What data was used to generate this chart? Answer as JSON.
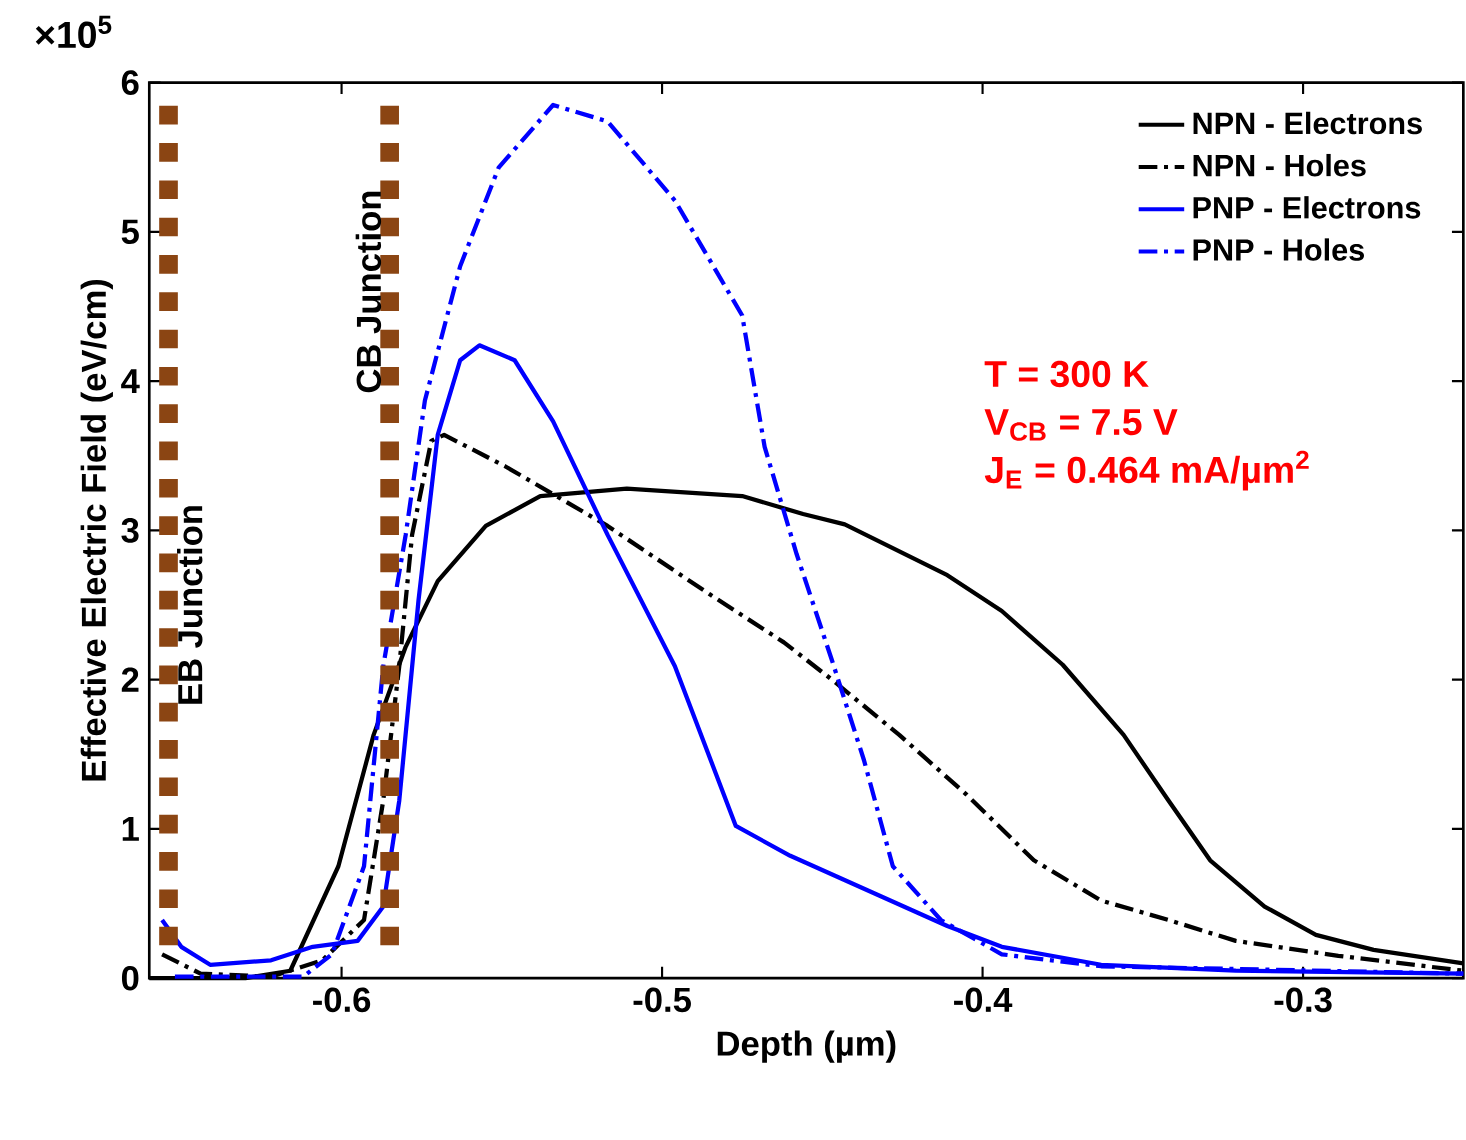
{
  "chart_data": {
    "type": "line",
    "xlabel": "Depth (µm)",
    "ylabel": "Effective Electric Field (eV/cm)",
    "xlim": [
      -0.66,
      -0.25
    ],
    "ylim": [
      0,
      6
    ],
    "xticks": [
      -0.6,
      -0.5,
      -0.4,
      -0.3
    ],
    "yticks": [
      0,
      1,
      2,
      3,
      4,
      5,
      6
    ],
    "legend": "top right",
    "grid": false,
    "annotations": [
      "×10$^{5}$",
      "T = 300 K",
      "V$_{CB}$ = 7.5 V",
      "J$_{E}$ = 0.464 mA/µm$^{2}$"
    ],
    "ref_lines": [
      {
        "axis": "x",
        "value": -0.654,
        "label": "EB Junction",
        "color": "#8b4513",
        "line_style": "dotted"
      },
      {
        "axis": "x",
        "value": -0.585,
        "label": "CB Junction",
        "color": "#8b4513",
        "line_style": "dotted"
      }
    ],
    "series": [
      {
        "name": "NPN - Electrons",
        "color": "#000000",
        "line_style": "solid",
        "x": [
          -0.66,
          -0.63,
          -0.616,
          -0.601,
          -0.59,
          -0.58,
          -0.57,
          -0.555,
          -0.538,
          -0.511,
          -0.475,
          -0.456,
          -0.443,
          -0.411,
          -0.394,
          -0.375,
          -0.356,
          -0.342,
          -0.329,
          -0.312,
          -0.296,
          -0.278,
          -0.25
        ],
        "values": [
          0.0,
          0.0,
          0.05,
          0.75,
          1.63,
          2.22,
          2.66,
          3.03,
          3.23,
          3.28,
          3.23,
          3.11,
          3.04,
          2.7,
          2.46,
          2.1,
          1.63,
          1.19,
          0.79,
          0.48,
          0.29,
          0.19,
          0.1
        ]
      },
      {
        "name": "NPN - Holes",
        "color": "#000000",
        "line_style": "dashdot",
        "x": [
          -0.656,
          -0.644,
          -0.622,
          -0.606,
          -0.593,
          -0.587,
          -0.582,
          -0.578,
          -0.572,
          -0.568,
          -0.549,
          -0.517,
          -0.485,
          -0.462,
          -0.447,
          -0.426,
          -0.405,
          -0.384,
          -0.363,
          -0.342,
          -0.321,
          -0.289,
          -0.25
        ],
        "values": [
          0.16,
          0.03,
          0.01,
          0.12,
          0.39,
          1.19,
          2.09,
          2.97,
          3.6,
          3.64,
          3.43,
          3.03,
          2.57,
          2.25,
          2.0,
          1.63,
          1.23,
          0.79,
          0.52,
          0.39,
          0.25,
          0.15,
          0.05
        ]
      },
      {
        "name": "PNP - Electrons",
        "color": "#0000ff",
        "line_style": "solid",
        "x": [
          -0.656,
          -0.65,
          -0.641,
          -0.622,
          -0.609,
          -0.595,
          -0.587,
          -0.582,
          -0.576,
          -0.57,
          -0.563,
          -0.557,
          -0.546,
          -0.534,
          -0.517,
          -0.496,
          -0.477,
          -0.46,
          -0.411,
          -0.394,
          -0.363,
          -0.321,
          -0.25
        ],
        "values": [
          0.39,
          0.21,
          0.09,
          0.12,
          0.21,
          0.25,
          0.48,
          1.19,
          2.53,
          3.64,
          4.14,
          4.24,
          4.14,
          3.73,
          2.97,
          2.09,
          1.02,
          0.82,
          0.35,
          0.21,
          0.09,
          0.05,
          0.03
        ]
      },
      {
        "name": "PNP - Holes",
        "color": "#0000ff",
        "line_style": "dashdot",
        "x": [
          -0.652,
          -0.612,
          -0.603,
          -0.593,
          -0.587,
          -0.58,
          -0.574,
          -0.563,
          -0.551,
          -0.534,
          -0.517,
          -0.496,
          -0.475,
          -0.468,
          -0.458,
          -0.447,
          -0.437,
          -0.428,
          -0.413,
          -0.394,
          -0.363,
          -0.25
        ],
        "values": [
          0.01,
          0.01,
          0.16,
          0.75,
          2.09,
          2.97,
          3.87,
          4.77,
          5.43,
          5.85,
          5.74,
          5.21,
          4.44,
          3.56,
          2.84,
          2.13,
          1.46,
          0.75,
          0.39,
          0.16,
          0.08,
          0.03
        ]
      }
    ]
  }
}
